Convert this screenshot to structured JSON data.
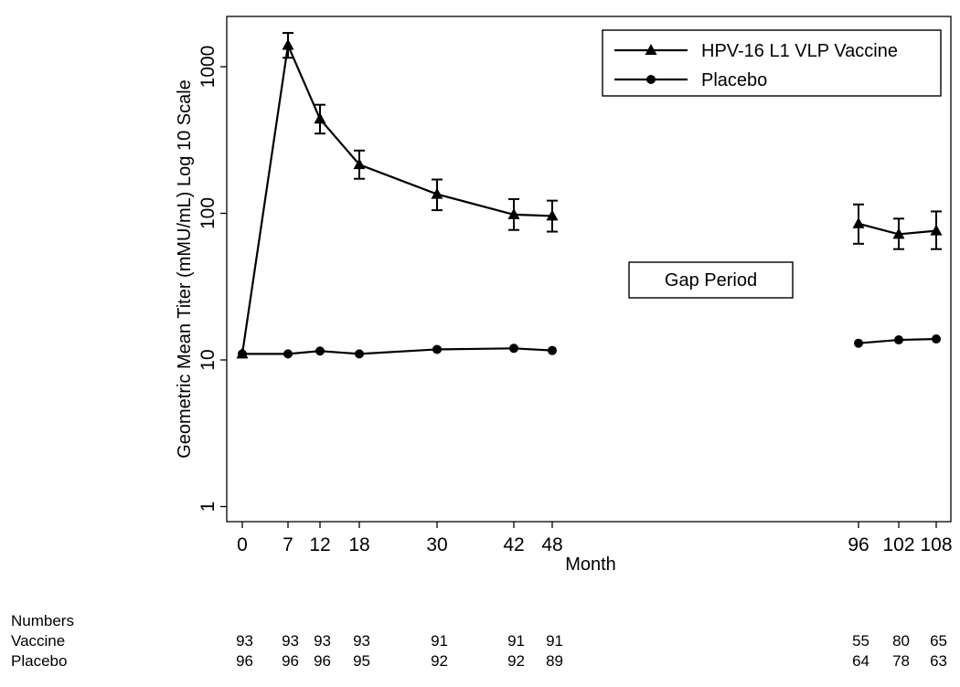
{
  "chart_data": {
    "type": "line",
    "title": "",
    "xlabel": "Month",
    "ylabel": "Geometric Mean Titer (mMU/mL) Log 10 Scale",
    "y_scale": "log10",
    "ylim": [
      0.7,
      2000
    ],
    "y_ticks": [
      1,
      10,
      100,
      1000
    ],
    "y_tick_labels": [
      "1",
      "10",
      "100",
      "1000"
    ],
    "x_ticks": [
      0,
      7,
      12,
      18,
      30,
      42,
      48,
      96,
      102,
      108
    ],
    "x_tick_labels": [
      "0",
      "7",
      "12",
      "18",
      "30",
      "42",
      "48",
      "96",
      "102",
      "108"
    ],
    "x_axis_break": {
      "from": 48,
      "to": 96
    },
    "grid": false,
    "legend_position": "top-right",
    "annotation": "Gap Period",
    "series": [
      {
        "name": "HPV-16 L1 VLP Vaccine",
        "marker": "triangle",
        "segments": [
          [
            {
              "x": 0,
              "y": 11,
              "lo": null,
              "hi": null
            },
            {
              "x": 7,
              "y": 1400,
              "lo": 1150,
              "hi": 1700
            },
            {
              "x": 12,
              "y": 440,
              "lo": 350,
              "hi": 550
            },
            {
              "x": 18,
              "y": 215,
              "lo": 172,
              "hi": 268
            },
            {
              "x": 30,
              "y": 135,
              "lo": 105,
              "hi": 170
            },
            {
              "x": 42,
              "y": 98,
              "lo": 77,
              "hi": 125
            },
            {
              "x": 48,
              "y": 96,
              "lo": 75,
              "hi": 122
            }
          ],
          [
            {
              "x": 96,
              "y": 85,
              "lo": 62,
              "hi": 115
            },
            {
              "x": 102,
              "y": 72,
              "lo": 57,
              "hi": 92
            },
            {
              "x": 108,
              "y": 76,
              "lo": 57,
              "hi": 103
            }
          ]
        ]
      },
      {
        "name": "Placebo",
        "marker": "circle",
        "segments": [
          [
            {
              "x": 0,
              "y": 11
            },
            {
              "x": 7,
              "y": 11
            },
            {
              "x": 12,
              "y": 11.5
            },
            {
              "x": 18,
              "y": 11
            },
            {
              "x": 30,
              "y": 11.8
            },
            {
              "x": 42,
              "y": 12
            },
            {
              "x": 48,
              "y": 11.6
            }
          ],
          [
            {
              "x": 96,
              "y": 13
            },
            {
              "x": 102,
              "y": 13.7
            },
            {
              "x": 108,
              "y": 13.9
            }
          ]
        ]
      }
    ],
    "numbers_table": {
      "title": "Numbers",
      "rows": [
        {
          "label": "Vaccine",
          "values": [
            "93",
            "93",
            "93",
            "93",
            "91",
            "91",
            "91",
            "55",
            "80",
            "65"
          ]
        },
        {
          "label": "Placebo",
          "values": [
            "96",
            "96",
            "96",
            "95",
            "92",
            "92",
            "89",
            "64",
            "78",
            "63"
          ]
        }
      ]
    }
  }
}
